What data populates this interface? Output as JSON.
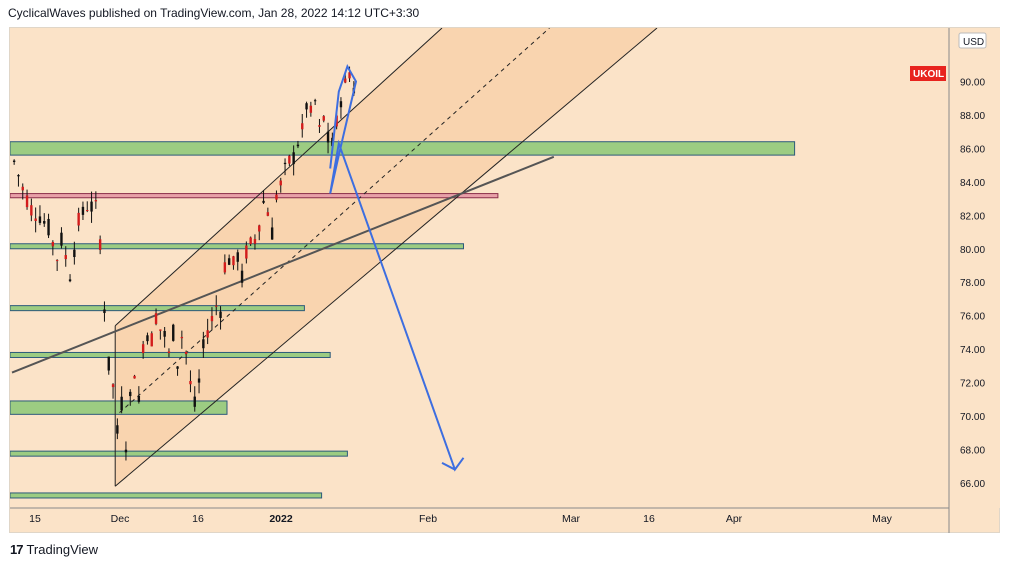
{
  "header": {
    "text": "CyclicalWaves published on TradingView.com, Jan 28, 2022 14:12 UTC+3:30"
  },
  "footer": {
    "logo": "17",
    "brand": "TradingView"
  },
  "colors": {
    "background": "#fbe3c8",
    "candle": "#d31c1c",
    "zone_green": "#9ccc82",
    "zone_red": "#e8a0a8",
    "projection": "#3d6ee0",
    "channel_fill": "#f7c99a",
    "symbol_badge": "#e8231e"
  },
  "chart_data": {
    "type": "candlestick",
    "symbol": "UKOIL",
    "currency": "USD",
    "ylim": [
      64.5,
      93.2
    ],
    "x_ticks": [
      "15",
      "Dec",
      "16",
      "2022",
      "Feb",
      "Mar",
      "16",
      "Apr",
      "May"
    ],
    "y_ticks": [
      "66.00",
      "68.00",
      "70.00",
      "72.00",
      "74.00",
      "76.00",
      "78.00",
      "80.00",
      "82.00",
      "84.00",
      "86.00",
      "88.00",
      "90.00"
    ],
    "last_price_label": "UKOIL",
    "price_path": [
      [
        0,
        85.2
      ],
      [
        2,
        83.6
      ],
      [
        4,
        82.4
      ],
      [
        6,
        82.0
      ],
      [
        8,
        81.2
      ],
      [
        10,
        79.5
      ],
      [
        11,
        80.5
      ],
      [
        13,
        78.5
      ],
      [
        15,
        81.6
      ],
      [
        17,
        82.6
      ],
      [
        19,
        82.4
      ],
      [
        20,
        80.5
      ],
      [
        21,
        76.5
      ],
      [
        22,
        73.0
      ],
      [
        23,
        71.8
      ],
      [
        24,
        69.0
      ],
      [
        25,
        70.8
      ],
      [
        26,
        68.4
      ],
      [
        27,
        71.0
      ],
      [
        28,
        72.8
      ],
      [
        29,
        70.8
      ],
      [
        30,
        74.3
      ],
      [
        31,
        75.0
      ],
      [
        32,
        74.6
      ],
      [
        33,
        76.0
      ],
      [
        34,
        75.2
      ],
      [
        35,
        74.8
      ],
      [
        36,
        73.6
      ],
      [
        37,
        75.0
      ],
      [
        38,
        73.2
      ],
      [
        39,
        74.8
      ],
      [
        40,
        73.8
      ],
      [
        41,
        71.9
      ],
      [
        42,
        70.6
      ],
      [
        43,
        72.0
      ],
      [
        44,
        74.0
      ],
      [
        45,
        75.2
      ],
      [
        46,
        75.8
      ],
      [
        47,
        76.6
      ],
      [
        48,
        76.4
      ],
      [
        49,
        79.0
      ],
      [
        50,
        79.4
      ],
      [
        51,
        79.0
      ],
      [
        52,
        79.6
      ],
      [
        53,
        78.2
      ],
      [
        54,
        79.8
      ],
      [
        55,
        80.2
      ],
      [
        56,
        80.6
      ],
      [
        57,
        81.6
      ],
      [
        58,
        82.8
      ],
      [
        59,
        82.3
      ],
      [
        60,
        81.0
      ],
      [
        61,
        83.2
      ],
      [
        62,
        83.8
      ],
      [
        63,
        84.6
      ],
      [
        64,
        85.2
      ],
      [
        65,
        85.5
      ],
      [
        66,
        86.4
      ],
      [
        67,
        87.0
      ],
      [
        68,
        88.6
      ],
      [
        69,
        88.0
      ],
      [
        70,
        88.8
      ],
      [
        71,
        87.0
      ],
      [
        72,
        87.8
      ],
      [
        73,
        86.5
      ],
      [
        74,
        86.2
      ],
      [
        75,
        87.5
      ],
      [
        76,
        89.0
      ],
      [
        77,
        89.8
      ],
      [
        78,
        90.6
      ],
      [
        79,
        89.6
      ],
      [
        80,
        89.9
      ]
    ],
    "horizontal_zones": [
      {
        "y1": 85.6,
        "y2": 86.4,
        "x_start": 0,
        "x_end": 182,
        "color": "green"
      },
      {
        "y1": 83.05,
        "y2": 83.3,
        "x_start": 0,
        "x_end": 113,
        "color": "red"
      },
      {
        "y1": 80.0,
        "y2": 80.3,
        "x_start": 0,
        "x_end": 105,
        "color": "green"
      },
      {
        "y1": 76.3,
        "y2": 76.6,
        "x_start": 0,
        "x_end": 68,
        "color": "green"
      },
      {
        "y1": 73.5,
        "y2": 73.8,
        "x_start": 0,
        "x_end": 74,
        "color": "green"
      },
      {
        "y1": 70.1,
        "y2": 70.9,
        "x_start": 0,
        "x_end": 50,
        "color": "green"
      },
      {
        "y1": 67.6,
        "y2": 67.9,
        "x_start": 0,
        "x_end": 78,
        "color": "green"
      },
      {
        "y1": 65.1,
        "y2": 65.4,
        "x_start": 0,
        "x_end": 72,
        "color": "green"
      }
    ],
    "channel": {
      "upper": [
        [
          24,
          75.4
        ],
        [
          100,
          93.2
        ]
      ],
      "middle": [
        [
          25,
          70.2
        ],
        [
          125,
          93.2
        ]
      ],
      "lower": [
        [
          24,
          65.8
        ],
        [
          150,
          93.2
        ]
      ]
    },
    "trendline": [
      [
        0,
        72.6
      ],
      [
        126,
        85.5
      ]
    ],
    "projection_path": [
      [
        74,
        84.8
      ],
      [
        76,
        89.4
      ],
      [
        78,
        90.9
      ],
      [
        80,
        90.0
      ],
      [
        76,
        85.6
      ],
      [
        74,
        83.3
      ],
      [
        76,
        86.3
      ],
      [
        103,
        66.8
      ],
      [
        105,
        67.5
      ],
      [
        103,
        66.8
      ],
      [
        100,
        67.2
      ]
    ]
  }
}
